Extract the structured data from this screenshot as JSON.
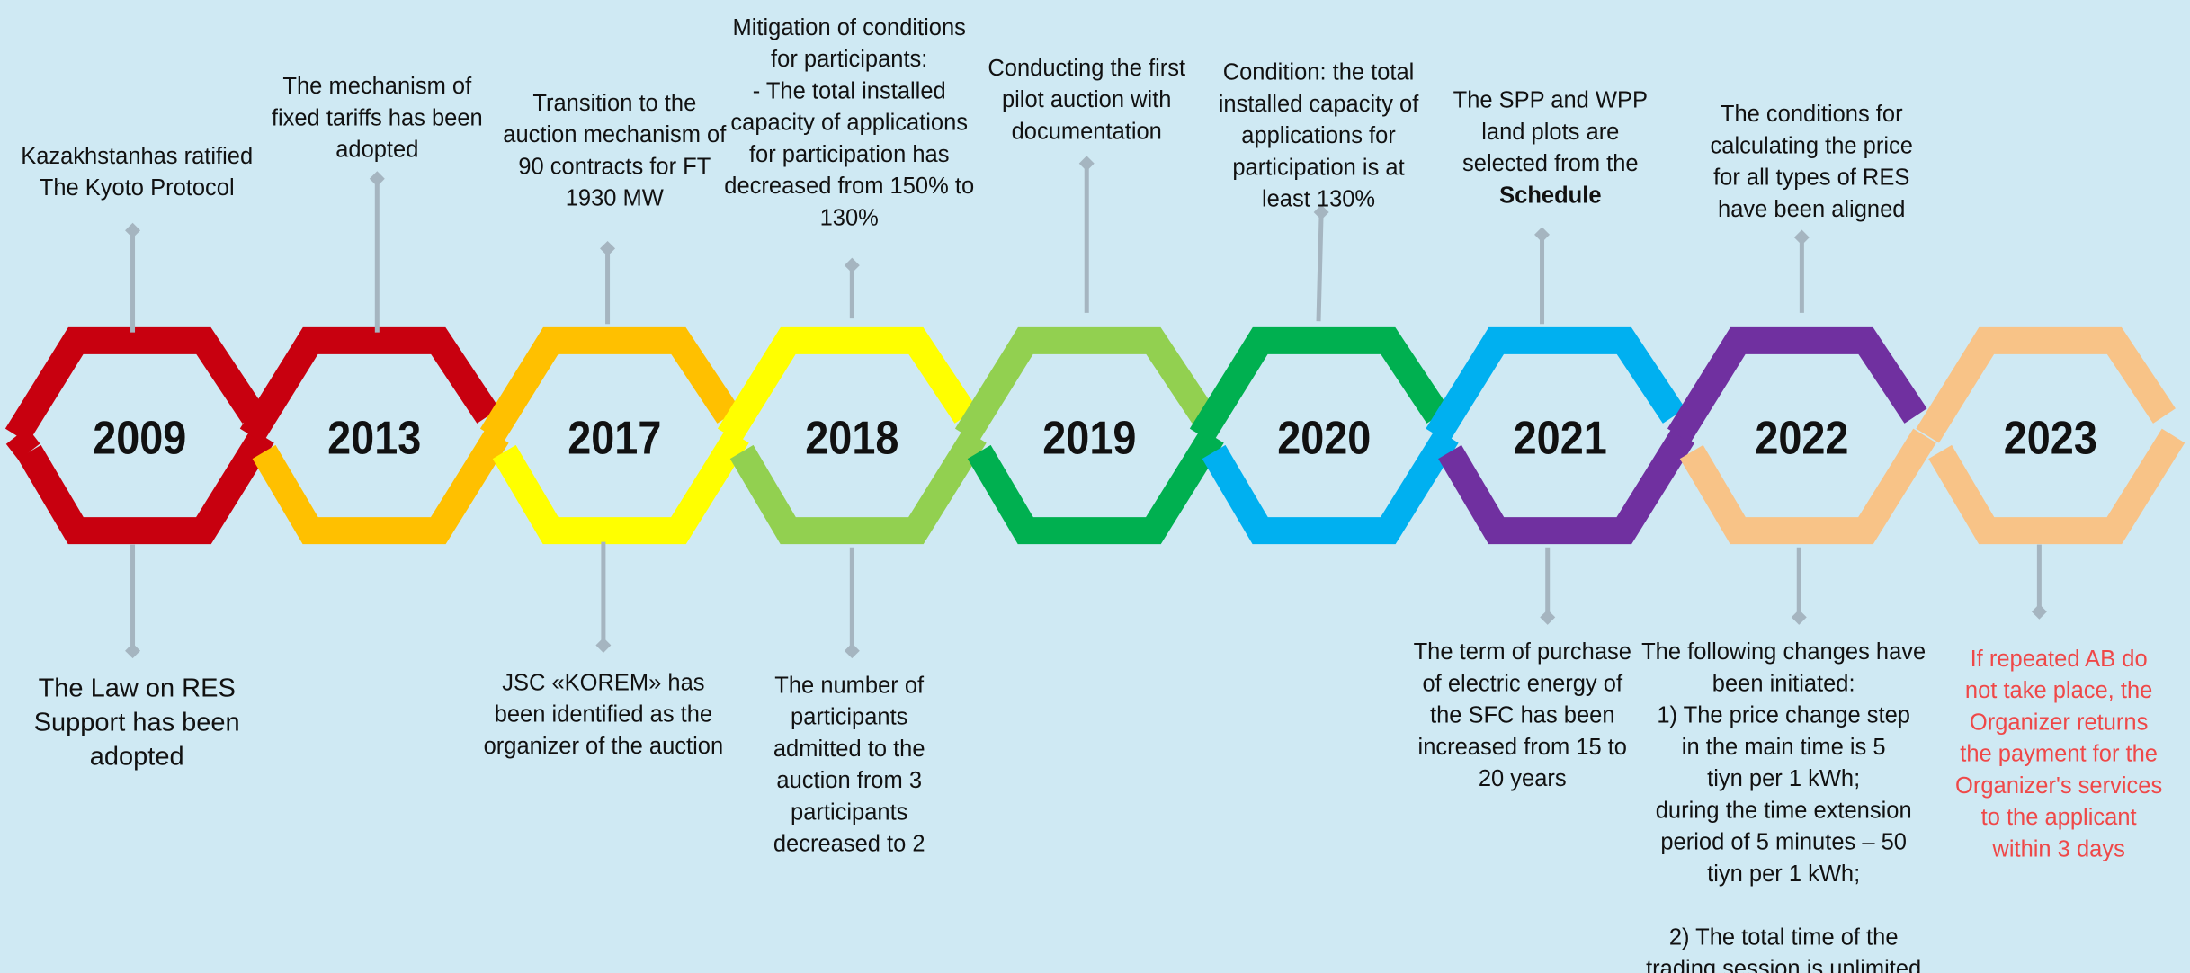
{
  "events": [
    {
      "year": "2009",
      "top": [
        [
          "Kazakhstanhas ratified",
          "The Kyoto Protocol"
        ]
      ],
      "bottom": [
        [
          "The Law on RES",
          "Support has been",
          "adopted"
        ]
      ]
    },
    {
      "year": "2013",
      "top": [
        [
          "The mechanism of",
          "fixed tariffs has been",
          "adopted"
        ]
      ]
    },
    {
      "year": "2017",
      "top": [
        [
          "Transition to the",
          "auction mechanism of",
          "90 contracts for FT",
          "1930 MW"
        ]
      ],
      "bottom": [
        [
          "JSC «KOREM» has",
          "been identified as the",
          "organizer of the auction"
        ]
      ]
    },
    {
      "year": "2018",
      "top": [
        [
          "Mitigation of conditions",
          "for participants:",
          "- The total installed",
          "capacity of applications",
          "for participation has",
          "decreased from 150% to",
          "130%"
        ]
      ],
      "bottom": [
        [
          "The number of",
          "participants",
          "admitted to the",
          "auction from 3",
          "participants",
          "decreased to 2"
        ]
      ]
    },
    {
      "year": "2019",
      "top": [
        [
          "Conducting the first",
          "pilot auction with",
          "documentation"
        ]
      ]
    },
    {
      "year": "2020",
      "top": [
        [
          "Condition: the total",
          "installed capacity of",
          "applications for",
          "participation is at",
          "least 130%"
        ]
      ]
    },
    {
      "year": "2021",
      "top": [
        [
          "The SPP and WPP",
          "land plots are",
          "selected from the",
          "Schedule"
        ]
      ],
      "bottom": [
        [
          "The term of purchase",
          "of electric energy of",
          "the SFC has been",
          "increased from 15 to",
          "20 years"
        ]
      ]
    },
    {
      "year": "2022",
      "top": [
        [
          "The conditions for",
          "calculating the price",
          "for all types of RES",
          "have been aligned"
        ]
      ],
      "bottom": [
        [
          "The following changes have",
          "been initiated:",
          "1)     The price change step",
          "in the main time is 5",
          "tiyn per 1 kWh;",
          "during the time extension",
          "period of 5 minutes – 50",
          "tiyn per 1 kWh;"
        ],
        [
          "2) The total time of the",
          "trading session is unlimited"
        ]
      ]
    },
    {
      "year": "2023",
      "bottom": [
        [
          "If repeated AB do",
          "not take place, the",
          "Organizer returns",
          "the payment for the",
          "Organizer's services",
          "to the applicant",
          "within 3 days"
        ]
      ]
    }
  ]
}
